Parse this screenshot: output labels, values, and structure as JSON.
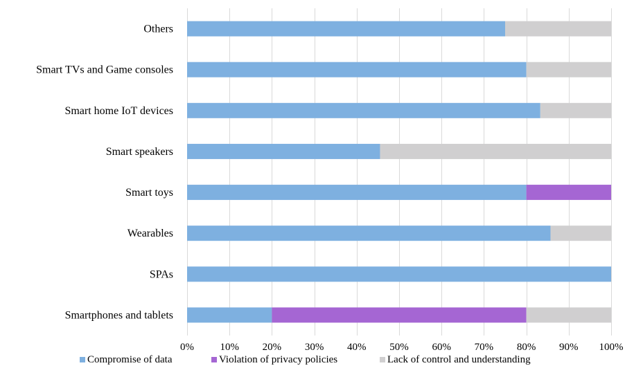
{
  "chart_data": {
    "type": "bar",
    "orientation": "horizontal",
    "stacked": true,
    "percent": true,
    "title": "",
    "xlabel": "",
    "ylabel": "",
    "xlim": [
      0,
      100
    ],
    "grid": true,
    "legend_position": "bottom",
    "categories": [
      "Others",
      "Smart TVs and Game consoles",
      "Smart home IoT devices",
      "Smart speakers",
      "Smart toys",
      "Wearables",
      "SPAs",
      "Smartphones and tablets"
    ],
    "tick_labels": [
      "0%",
      "10%",
      "20%",
      "30%",
      "40%",
      "50%",
      "60%",
      "70%",
      "80%",
      "90%",
      "100%"
    ],
    "series": [
      {
        "name": "Compromise of data",
        "color": "#7eb0e0",
        "values": [
          75,
          80,
          83.3,
          45.5,
          80,
          85.7,
          100,
          20
        ]
      },
      {
        "name": "Violation of privacy policies",
        "color": "#a566d3",
        "values": [
          0,
          0,
          0,
          0,
          20,
          0,
          0,
          60
        ]
      },
      {
        "name": "Lack of control and understanding",
        "color": "#d0cfd0",
        "values": [
          25,
          20,
          16.7,
          54.5,
          0,
          14.3,
          0,
          20
        ]
      }
    ]
  }
}
